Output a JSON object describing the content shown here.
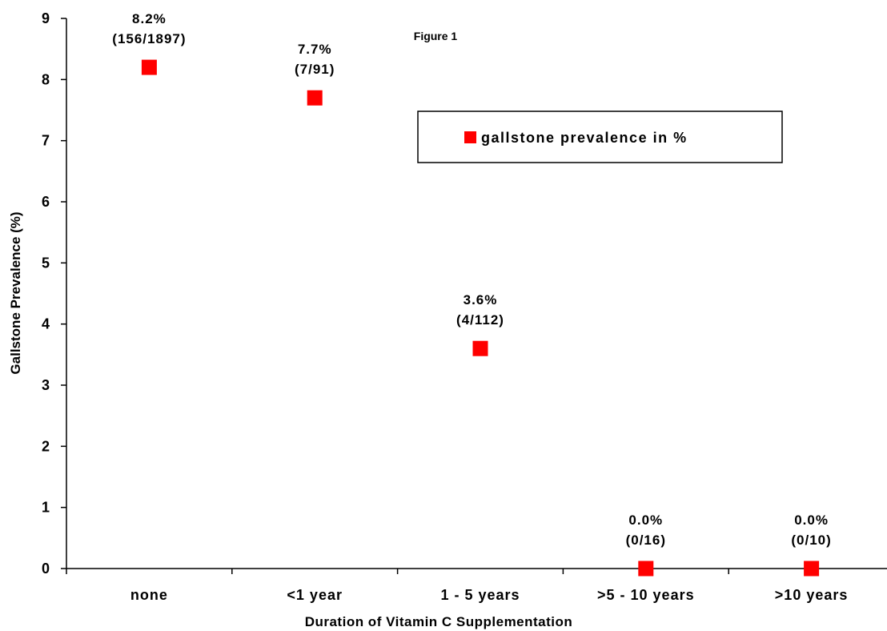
{
  "chart_data": {
    "type": "scatter",
    "title": "Figure 1",
    "xlabel": "Duration of Vitamin C Supplementation",
    "ylabel": "Gallstone Prevalence (%)",
    "categories": [
      "none",
      "<1 year",
      "1 - 5 years",
      ">5 - 10 years",
      ">10 years"
    ],
    "ylim": [
      0,
      9
    ],
    "yticks": [
      "0",
      "1",
      "2",
      "3",
      "4",
      "5",
      "6",
      "7",
      "8",
      "9"
    ],
    "grid": false,
    "legend_position": "top-right",
    "series": [
      {
        "name": "gallstone prevalence in %",
        "color": "#ff0000",
        "marker": "square",
        "values": [
          8.2,
          7.7,
          3.6,
          0.0,
          0.0
        ],
        "labels": [
          [
            "8.2%",
            "(156/1897)"
          ],
          [
            "7.7%",
            "(7/91)"
          ],
          [
            "3.6%",
            "(4/112)"
          ],
          [
            "0.0%",
            "(0/16)"
          ],
          [
            "0.0%",
            "(0/10)"
          ]
        ]
      }
    ]
  }
}
